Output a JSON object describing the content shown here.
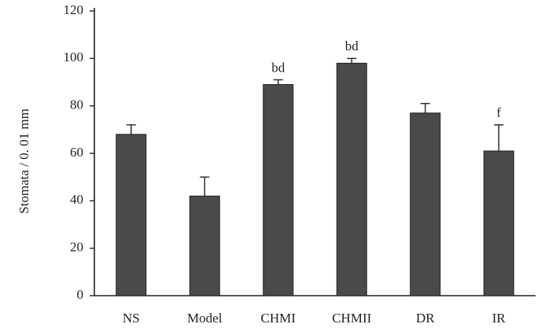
{
  "chart_data": {
    "type": "bar",
    "y_label": "Stomata / 0. 01 mm",
    "categories": [
      "NS",
      "Model",
      "CHMI",
      "CHMII",
      "DR",
      "IR"
    ],
    "values": [
      68,
      42,
      89,
      98,
      77,
      61
    ],
    "errors": [
      4,
      8,
      2,
      2,
      4,
      11
    ],
    "annotations": [
      null,
      null,
      "bd",
      "bd",
      null,
      "f"
    ],
    "color": "#4a4a4a",
    "ylim": [
      0,
      120
    ],
    "yticks": [
      0,
      20,
      40,
      60,
      80,
      100,
      120
    ],
    "grid": false
  }
}
